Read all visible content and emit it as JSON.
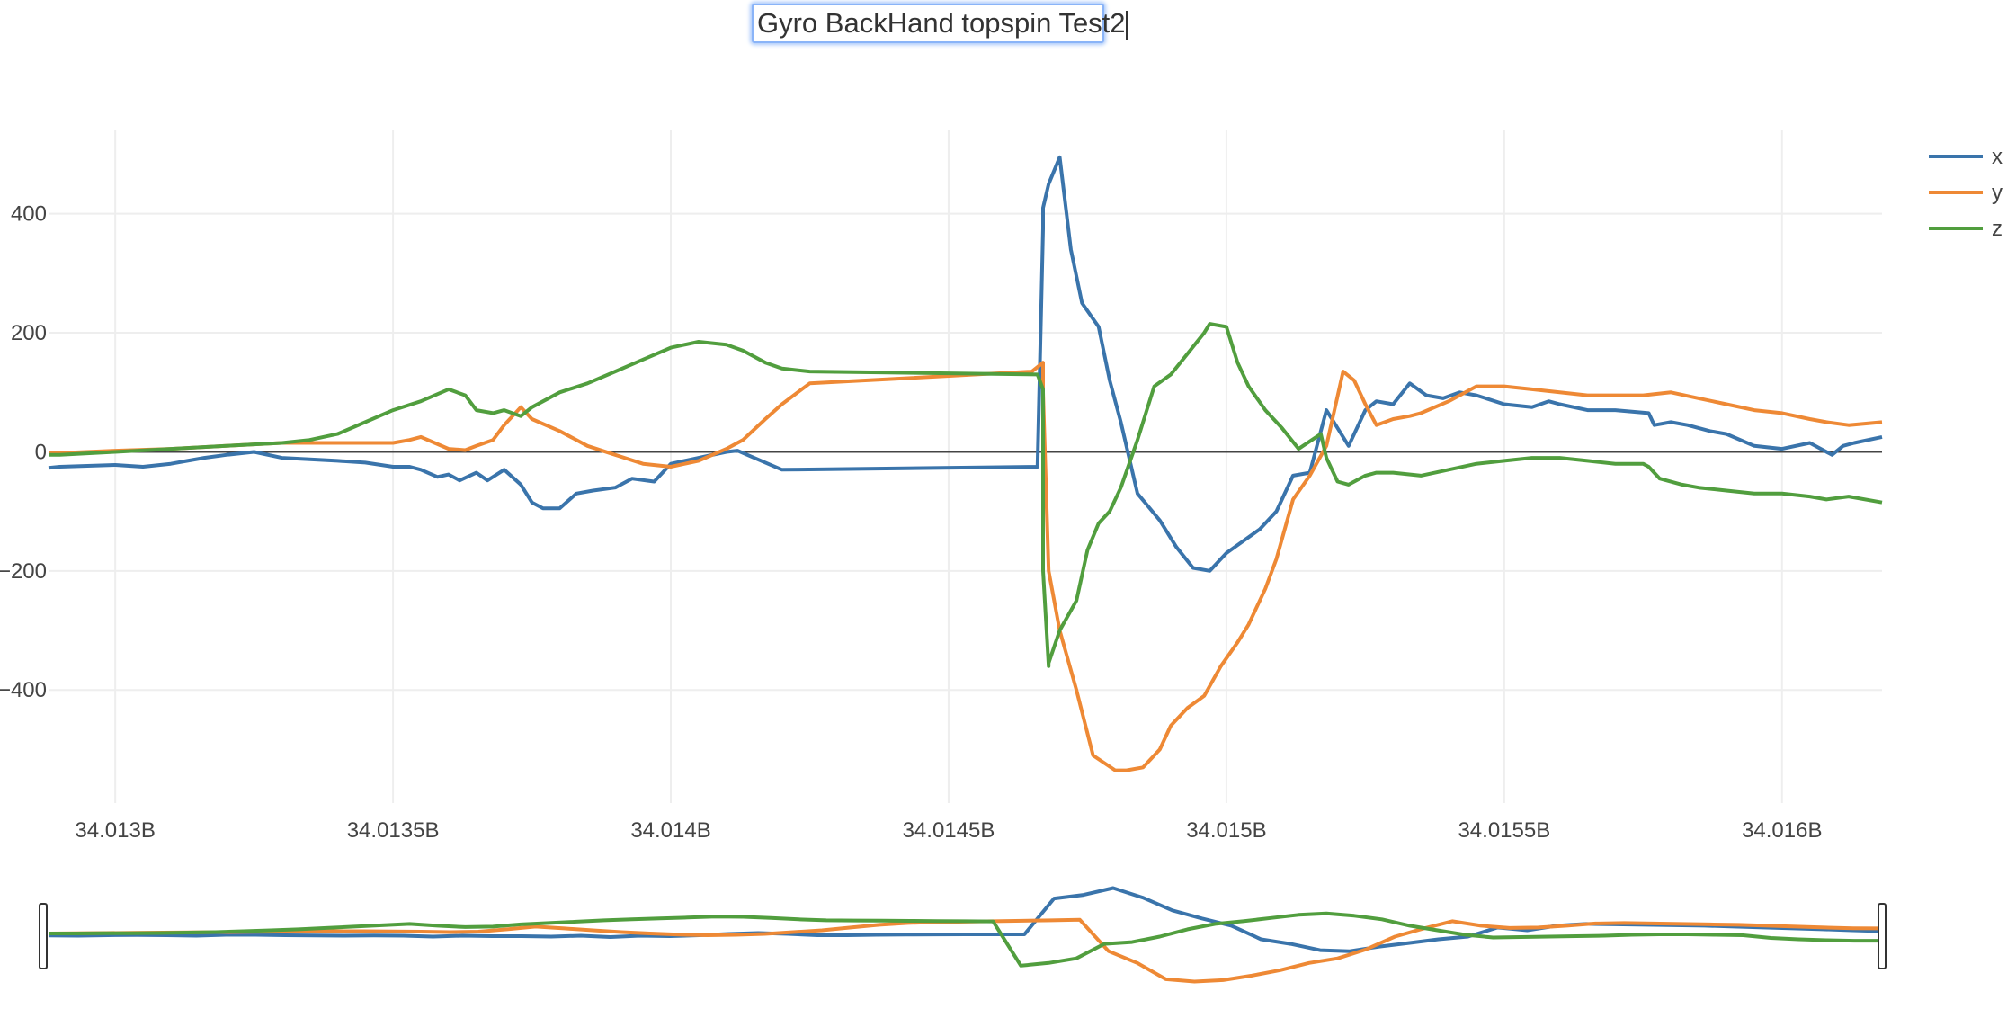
{
  "chart_data": {
    "type": "line",
    "title": "Gyro BackHand topspin Test2",
    "xlabel": "",
    "ylabel": "",
    "xlim": [
      34.01288,
      34.01618
    ],
    "ylim": [
      -590,
      540
    ],
    "x_ticks": [
      34.013,
      34.0135,
      34.014,
      34.0145,
      34.015,
      34.0155,
      34.016
    ],
    "x_tick_labels": [
      "34.013B",
      "34.0135B",
      "34.014B",
      "34.0145B",
      "34.015B",
      "34.0155B",
      "34.016B"
    ],
    "y_ticks": [
      -400,
      -200,
      0,
      200,
      400
    ],
    "y_tick_labels": [
      "−400",
      "−200",
      "0",
      "200",
      "400"
    ],
    "grid": true,
    "legend_position": "top-right",
    "range_slider": true,
    "series": [
      {
        "name": "x",
        "color": "#3a74ab",
        "x": [
          34.01288,
          34.0129,
          34.013,
          34.01305,
          34.0131,
          34.01313,
          34.01316,
          34.0132,
          34.01325,
          34.0133,
          34.0134,
          34.01345,
          34.0135,
          34.01353,
          34.01355,
          34.01358,
          34.0136,
          34.01362,
          34.01365,
          34.01367,
          34.0137,
          34.01373,
          34.01375,
          34.01377,
          34.0138,
          34.01383,
          34.01386,
          34.0139,
          34.01393,
          34.01397,
          34.014,
          34.01405,
          34.0141,
          34.01412,
          34.01415,
          34.0142,
          34.01466,
          34.01467,
          34.01467,
          34.01468,
          34.0147,
          34.01472,
          34.01474,
          34.01477,
          34.01479,
          34.01481,
          34.01484,
          34.01488,
          34.01491,
          34.01494,
          34.01497,
          34.015,
          34.01503,
          34.01506,
          34.01509,
          34.01512,
          34.01515,
          34.01518,
          34.0152,
          34.01522,
          34.01525,
          34.01527,
          34.0153,
          34.01533,
          34.01536,
          34.01539,
          34.01542,
          34.01545,
          34.0155,
          34.01555,
          34.01558,
          34.0156,
          34.01565,
          34.0157,
          34.01576,
          34.01577,
          34.0158,
          34.01583,
          34.01587,
          34.0159,
          34.01595,
          34.016,
          34.01605,
          34.01607,
          34.01609,
          34.01611,
          34.01613,
          34.01618
        ],
        "values": [
          -27,
          -25,
          -22,
          -25,
          -20,
          -15,
          -10,
          -5,
          0,
          -10,
          -15,
          -18,
          -25,
          -25,
          -30,
          -42,
          -38,
          -48,
          -35,
          -48,
          -30,
          -55,
          -85,
          -95,
          -95,
          -70,
          -65,
          -60,
          -45,
          -50,
          -20,
          -10,
          0,
          2,
          -10,
          -30,
          -25,
          375,
          410,
          450,
          495,
          340,
          250,
          210,
          120,
          50,
          -70,
          -115,
          -160,
          -195,
          -200,
          -170,
          -150,
          -130,
          -100,
          -40,
          -35,
          70,
          40,
          10,
          70,
          85,
          80,
          115,
          95,
          90,
          100,
          95,
          80,
          75,
          85,
          80,
          70,
          70,
          65,
          45,
          50,
          45,
          35,
          30,
          10,
          5,
          15,
          5,
          -5,
          10,
          15,
          25
        ],
        "slider_values": [
          -27,
          -30,
          -25,
          -22,
          -25,
          -30,
          -20,
          -20,
          -25,
          -28,
          -30,
          -28,
          -30,
          -40,
          -30,
          -35,
          -35,
          -40,
          -30,
          -45,
          -30,
          -35,
          -25,
          -10,
          0,
          -10,
          -25,
          -25,
          -20,
          -18,
          -16,
          -15,
          -15,
          -15,
          380,
          420,
          495,
          390,
          250,
          160,
          80,
          -70,
          -120,
          -190,
          -200,
          -150,
          -110,
          -70,
          -40,
          60,
          30,
          80,
          100,
          95,
          90,
          85,
          80,
          70,
          60,
          50,
          40,
          30,
          20
        ]
      },
      {
        "name": "y",
        "color": "#ee8935",
        "x": [
          34.01288,
          34.0129,
          34.013,
          34.0131,
          34.0132,
          34.0133,
          34.0134,
          34.0135,
          34.01353,
          34.01355,
          34.0136,
          34.01363,
          34.01365,
          34.01368,
          34.0137,
          34.01373,
          34.01375,
          34.0138,
          34.01385,
          34.0139,
          34.01395,
          34.014,
          34.01405,
          34.0141,
          34.01413,
          34.01417,
          34.0142,
          34.01425,
          34.01465,
          34.01467,
          34.01467,
          34.01468,
          34.0147,
          34.01473,
          34.01476,
          34.0148,
          34.01482,
          34.01485,
          34.01488,
          34.0149,
          34.01493,
          34.01496,
          34.01499,
          34.01502,
          34.01504,
          34.01507,
          34.01509,
          34.01512,
          34.01515,
          34.01518,
          34.01521,
          34.01523,
          34.01525,
          34.01527,
          34.0153,
          34.01533,
          34.01535,
          34.0154,
          34.01545,
          34.0155,
          34.01555,
          34.0156,
          34.01565,
          34.0157,
          34.01575,
          34.0158,
          34.01585,
          34.0159,
          34.01595,
          34.016,
          34.01605,
          34.01608,
          34.01612,
          34.01618
        ],
        "values": [
          -2,
          -2,
          2,
          5,
          10,
          15,
          15,
          15,
          20,
          25,
          5,
          3,
          10,
          20,
          45,
          75,
          55,
          35,
          10,
          -5,
          -20,
          -25,
          -15,
          5,
          20,
          55,
          80,
          115,
          135,
          150,
          100,
          -200,
          -300,
          -400,
          -510,
          -535,
          -535,
          -530,
          -500,
          -460,
          -430,
          -410,
          -360,
          -320,
          -290,
          -230,
          -180,
          -80,
          -40,
          10,
          135,
          120,
          80,
          45,
          55,
          60,
          65,
          85,
          110,
          110,
          105,
          100,
          95,
          95,
          95,
          100,
          90,
          80,
          70,
          65,
          55,
          50,
          45,
          50
        ],
        "slider_values": [
          -5,
          -3,
          0,
          2,
          5,
          8,
          10,
          12,
          15,
          17,
          20,
          20,
          18,
          15,
          10,
          15,
          40,
          70,
          50,
          30,
          10,
          -5,
          -18,
          -25,
          -20,
          -10,
          10,
          30,
          60,
          90,
          110,
          120,
          125,
          130,
          135,
          140,
          145,
          -200,
          -330,
          -510,
          -535,
          -520,
          -470,
          -410,
          -330,
          -280,
          -180,
          -40,
          50,
          130,
          80,
          55,
          60,
          80,
          105,
          110,
          105,
          100,
          95,
          90,
          80,
          70,
          60,
          52,
          50
        ]
      },
      {
        "name": "z",
        "color": "#519e3e",
        "x": [
          34.01288,
          34.0129,
          34.013,
          34.0131,
          34.0132,
          34.0133,
          34.01335,
          34.0134,
          34.01345,
          34.0135,
          34.01355,
          34.0136,
          34.01363,
          34.01365,
          34.01368,
          34.0137,
          34.01373,
          34.01375,
          34.0138,
          34.01385,
          34.0139,
          34.01395,
          34.014,
          34.01405,
          34.0141,
          34.01413,
          34.01417,
          34.0142,
          34.01425,
          34.01466,
          34.01467,
          34.01467,
          34.01468,
          34.01468,
          34.0147,
          34.01473,
          34.01475,
          34.01477,
          34.01479,
          34.01481,
          34.01484,
          34.01487,
          34.0149,
          34.01493,
          34.01496,
          34.01497,
          34.015,
          34.01502,
          34.01504,
          34.01507,
          34.0151,
          34.01513,
          34.01517,
          34.01518,
          34.0152,
          34.01522,
          34.01525,
          34.01527,
          34.0153,
          34.01535,
          34.0154,
          34.01545,
          34.0155,
          34.01555,
          34.0156,
          34.01565,
          34.0157,
          34.01575,
          34.01576,
          34.01578,
          34.01582,
          34.01585,
          34.0159,
          34.01595,
          34.016,
          34.01605,
          34.01608,
          34.01612,
          34.01618
        ],
        "values": [
          -5,
          -5,
          0,
          5,
          10,
          15,
          20,
          30,
          50,
          70,
          85,
          105,
          95,
          70,
          65,
          70,
          60,
          75,
          100,
          115,
          135,
          155,
          175,
          185,
          180,
          170,
          150,
          140,
          135,
          130,
          105,
          -200,
          -360,
          -355,
          -300,
          -250,
          -165,
          -120,
          -100,
          -60,
          20,
          110,
          130,
          165,
          200,
          215,
          210,
          150,
          110,
          70,
          40,
          5,
          30,
          -10,
          -50,
          -55,
          -40,
          -35,
          -35,
          -40,
          -30,
          -20,
          -15,
          -10,
          -10,
          -15,
          -20,
          -20,
          -25,
          -45,
          -55,
          -60,
          -65,
          -70,
          -70,
          -75,
          -80,
          -75,
          -85
        ],
        "slider_values": [
          -5,
          -5,
          -3,
          -2,
          0,
          5,
          10,
          20,
          30,
          40,
          55,
          70,
          85,
          100,
          80,
          65,
          70,
          95,
          110,
          125,
          140,
          150,
          160,
          170,
          180,
          178,
          165,
          150,
          140,
          138,
          136,
          134,
          132,
          130,
          128,
          -360,
          -330,
          -280,
          -120,
          -100,
          -40,
          40,
          100,
          130,
          165,
          200,
          215,
          190,
          150,
          80,
          30,
          -20,
          -50,
          -45,
          -40,
          -35,
          -30,
          -20,
          -15,
          -15,
          -20,
          -25,
          -55,
          -70,
          -80,
          -85,
          -85
        ]
      }
    ]
  }
}
